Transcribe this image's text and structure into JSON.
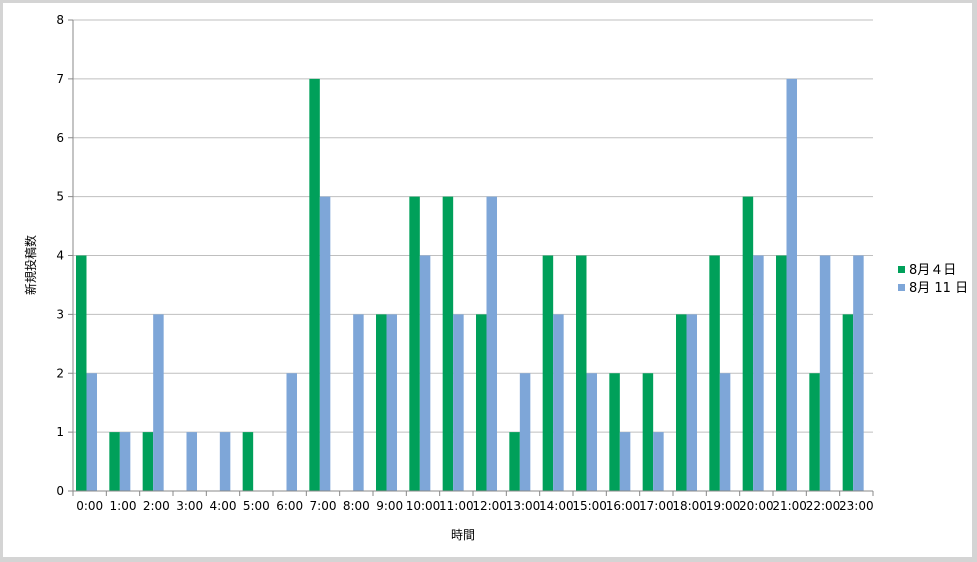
{
  "chart_data": {
    "type": "bar",
    "title": "",
    "xlabel": "時間",
    "ylabel": "新規投稿数",
    "ylim": [
      0,
      8
    ],
    "yticks": [
      0,
      1,
      2,
      3,
      4,
      5,
      6,
      7,
      8
    ],
    "grid": true,
    "legend_position": "right",
    "categories": [
      "0:00",
      "1:00",
      "2:00",
      "3:00",
      "4:00",
      "5:00",
      "6:00",
      "7:00",
      "8:00",
      "9:00",
      "10:00",
      "11:00",
      "12:00",
      "13:00",
      "14:00",
      "15:00",
      "16:00",
      "17:00",
      "18:00",
      "19:00",
      "20:00",
      "21:00",
      "22:00",
      "23:00"
    ],
    "series": [
      {
        "name": "8月４日",
        "color": "#00a05a",
        "values": [
          4,
          1,
          1,
          0,
          0,
          1,
          0,
          7,
          0,
          3,
          5,
          5,
          3,
          1,
          4,
          4,
          2,
          2,
          3,
          4,
          5,
          4,
          2,
          3
        ]
      },
      {
        "name": "8月 11 日",
        "color": "#7ea6d8",
        "values": [
          2,
          1,
          3,
          1,
          1,
          0,
          2,
          5,
          3,
          3,
          4,
          3,
          5,
          2,
          3,
          2,
          1,
          1,
          3,
          2,
          4,
          7,
          4,
          4
        ]
      }
    ]
  }
}
